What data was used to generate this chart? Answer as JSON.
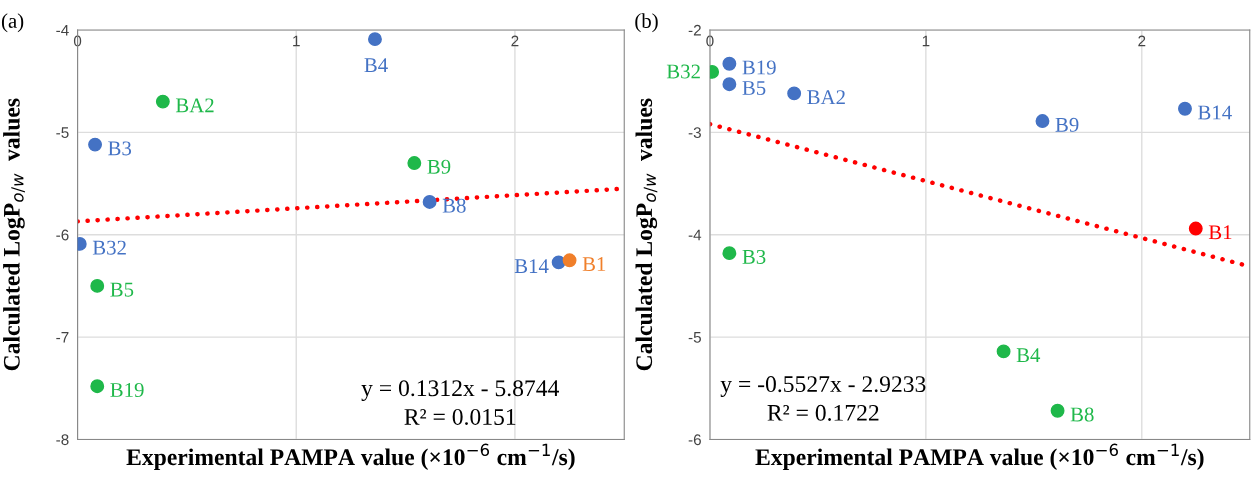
{
  "chart_data": [
    {
      "type": "scatter",
      "title": "(a)",
      "xlabel": "Experimental PAMPA value (×10$^{−6}$ cm$^{−1}$/s)",
      "ylabel": "Calculated LogP$_{o/w}$  values",
      "xlim": [
        0,
        2.5
      ],
      "ylim": [
        -8,
        -4
      ],
      "xticks": [
        0,
        1,
        2
      ],
      "yticks": [
        -8,
        -7,
        -6,
        -5,
        -4
      ],
      "grid": true,
      "marker": "circle",
      "annotations": [
        "y = 0.1312x - 5.8744",
        "R² = 0.0151"
      ],
      "series": [
        {
          "name": "B4",
          "color": "#4472c4",
          "x": [
            1.36
          ],
          "values": [
            -4.09
          ]
        },
        {
          "name": "BA2",
          "color": "#1fb84a",
          "x": [
            0.39
          ],
          "values": [
            -4.7
          ]
        },
        {
          "name": "B3",
          "color": "#4472c4",
          "x": [
            0.08
          ],
          "values": [
            -5.12
          ]
        },
        {
          "name": "B9",
          "color": "#1fb84a",
          "x": [
            1.54
          ],
          "values": [
            -5.3
          ]
        },
        {
          "name": "B8",
          "color": "#4472c4",
          "x": [
            1.61
          ],
          "values": [
            -5.68
          ]
        },
        {
          "name": "B32",
          "color": "#4472c4",
          "x": [
            0.01
          ],
          "values": [
            -6.09
          ]
        },
        {
          "name": "B14",
          "color": "#4472c4",
          "x": [
            2.2
          ],
          "values": [
            -6.27
          ]
        },
        {
          "name": "B1",
          "color": "#f07f2a",
          "x": [
            2.25
          ],
          "values": [
            -6.25
          ]
        },
        {
          "name": "B5",
          "color": "#1fb84a",
          "x": [
            0.09
          ],
          "values": [
            -6.5
          ]
        },
        {
          "name": "B19",
          "color": "#1fb84a",
          "x": [
            0.09
          ],
          "values": [
            -7.48
          ]
        },
        {
          "type": "line",
          "color": "#ff0000",
          "line_style": "dotted",
          "marker": "none",
          "x": [
            0,
            2.5
          ],
          "values": [
            -5.87,
            -5.55
          ]
        }
      ]
    },
    {
      "type": "scatter",
      "title": "(b)",
      "xlabel": "Experimental PAMPA value (×10$^{−6}$ cm$^{−1}$/s)",
      "ylabel": "Calculated LogP$_{o/w}$  values",
      "xlim": [
        0,
        2.5
      ],
      "ylim": [
        -6,
        -2
      ],
      "xticks": [
        0,
        1,
        2
      ],
      "yticks": [
        -6,
        -5,
        -4,
        -3,
        -2
      ],
      "grid": true,
      "marker": "circle",
      "annotations": [
        "y = -0.5527x - 2.9233",
        "R² = 0.1722"
      ],
      "series": [
        {
          "name": "B19",
          "color": "#4472c4",
          "x": [
            0.09
          ],
          "values": [
            -2.33
          ]
        },
        {
          "name": "B32",
          "color": "#1fb84a",
          "x": [
            0.01
          ],
          "values": [
            -2.41
          ]
        },
        {
          "name": "B5",
          "color": "#4472c4",
          "x": [
            0.09
          ],
          "values": [
            -2.53
          ]
        },
        {
          "name": "BA2",
          "color": "#4472c4",
          "x": [
            0.39
          ],
          "values": [
            -2.62
          ]
        },
        {
          "name": "B9",
          "color": "#4472c4",
          "x": [
            1.54
          ],
          "values": [
            -2.89
          ]
        },
        {
          "name": "B14",
          "color": "#4472c4",
          "x": [
            2.2
          ],
          "values": [
            -2.77
          ]
        },
        {
          "name": "B1",
          "color": "#ff0000",
          "x": [
            2.25
          ],
          "values": [
            -3.94
          ]
        },
        {
          "name": "B3",
          "color": "#1fb84a",
          "x": [
            0.09
          ],
          "values": [
            -4.18
          ]
        },
        {
          "name": "B4",
          "color": "#1fb84a",
          "x": [
            1.36
          ],
          "values": [
            -5.14
          ]
        },
        {
          "name": "B8",
          "color": "#1fb84a",
          "x": [
            1.61
          ],
          "values": [
            -5.72
          ]
        },
        {
          "type": "line",
          "color": "#ff0000",
          "line_style": "dotted",
          "marker": "none",
          "x": [
            0,
            2.5
          ],
          "values": [
            -2.92,
            -4.31
          ]
        }
      ]
    }
  ]
}
